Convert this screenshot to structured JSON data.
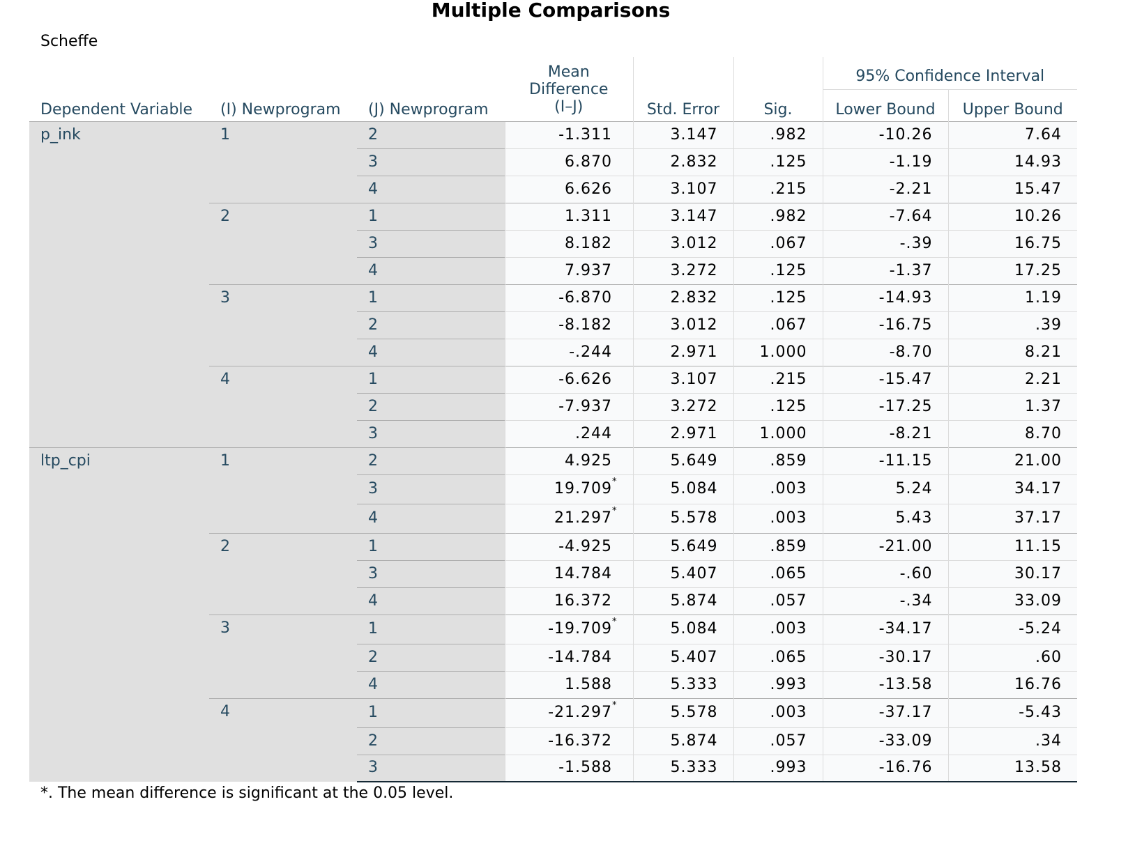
{
  "title": "Multiple Comparisons",
  "subtitle": "Scheffe",
  "headers": {
    "dependent_variable": "Dependent Variable",
    "i_group": "(I) Newprogram",
    "j_group": "(J) Newprogram",
    "mean_difference": "Mean Difference (I–J)",
    "std_error": "Std. Error",
    "sig": "Sig.",
    "ci": "95% Confidence Interval",
    "lower": "Lower Bound",
    "upper": "Upper Bound"
  },
  "rows": [
    {
      "dv": "p_ink",
      "i": "1",
      "j": "2",
      "md": "-1.311",
      "se": "3.147",
      "sig": ".982",
      "lo": "-10.26",
      "up": "7.64",
      "star": false
    },
    {
      "dv": "p_ink",
      "i": "1",
      "j": "3",
      "md": "6.870",
      "se": "2.832",
      "sig": ".125",
      "lo": "-1.19",
      "up": "14.93",
      "star": false
    },
    {
      "dv": "p_ink",
      "i": "1",
      "j": "4",
      "md": "6.626",
      "se": "3.107",
      "sig": ".215",
      "lo": "-2.21",
      "up": "15.47",
      "star": false
    },
    {
      "dv": "p_ink",
      "i": "2",
      "j": "1",
      "md": "1.311",
      "se": "3.147",
      "sig": ".982",
      "lo": "-7.64",
      "up": "10.26",
      "star": false
    },
    {
      "dv": "p_ink",
      "i": "2",
      "j": "3",
      "md": "8.182",
      "se": "3.012",
      "sig": ".067",
      "lo": "-.39",
      "up": "16.75",
      "star": false
    },
    {
      "dv": "p_ink",
      "i": "2",
      "j": "4",
      "md": "7.937",
      "se": "3.272",
      "sig": ".125",
      "lo": "-1.37",
      "up": "17.25",
      "star": false
    },
    {
      "dv": "p_ink",
      "i": "3",
      "j": "1",
      "md": "-6.870",
      "se": "2.832",
      "sig": ".125",
      "lo": "-14.93",
      "up": "1.19",
      "star": false
    },
    {
      "dv": "p_ink",
      "i": "3",
      "j": "2",
      "md": "-8.182",
      "se": "3.012",
      "sig": ".067",
      "lo": "-16.75",
      "up": ".39",
      "star": false
    },
    {
      "dv": "p_ink",
      "i": "3",
      "j": "4",
      "md": "-.244",
      "se": "2.971",
      "sig": "1.000",
      "lo": "-8.70",
      "up": "8.21",
      "star": false
    },
    {
      "dv": "p_ink",
      "i": "4",
      "j": "1",
      "md": "-6.626",
      "se": "3.107",
      "sig": ".215",
      "lo": "-15.47",
      "up": "2.21",
      "star": false
    },
    {
      "dv": "p_ink",
      "i": "4",
      "j": "2",
      "md": "-7.937",
      "se": "3.272",
      "sig": ".125",
      "lo": "-17.25",
      "up": "1.37",
      "star": false
    },
    {
      "dv": "p_ink",
      "i": "4",
      "j": "3",
      "md": ".244",
      "se": "2.971",
      "sig": "1.000",
      "lo": "-8.21",
      "up": "8.70",
      "star": false
    },
    {
      "dv": "ltp_cpi",
      "i": "1",
      "j": "2",
      "md": "4.925",
      "se": "5.649",
      "sig": ".859",
      "lo": "-11.15",
      "up": "21.00",
      "star": false
    },
    {
      "dv": "ltp_cpi",
      "i": "1",
      "j": "3",
      "md": "19.709",
      "se": "5.084",
      "sig": ".003",
      "lo": "5.24",
      "up": "34.17",
      "star": true
    },
    {
      "dv": "ltp_cpi",
      "i": "1",
      "j": "4",
      "md": "21.297",
      "se": "5.578",
      "sig": ".003",
      "lo": "5.43",
      "up": "37.17",
      "star": true
    },
    {
      "dv": "ltp_cpi",
      "i": "2",
      "j": "1",
      "md": "-4.925",
      "se": "5.649",
      "sig": ".859",
      "lo": "-21.00",
      "up": "11.15",
      "star": false
    },
    {
      "dv": "ltp_cpi",
      "i": "2",
      "j": "3",
      "md": "14.784",
      "se": "5.407",
      "sig": ".065",
      "lo": "-.60",
      "up": "30.17",
      "star": false
    },
    {
      "dv": "ltp_cpi",
      "i": "2",
      "j": "4",
      "md": "16.372",
      "se": "5.874",
      "sig": ".057",
      "lo": "-.34",
      "up": "33.09",
      "star": false
    },
    {
      "dv": "ltp_cpi",
      "i": "3",
      "j": "1",
      "md": "-19.709",
      "se": "5.084",
      "sig": ".003",
      "lo": "-34.17",
      "up": "-5.24",
      "star": true
    },
    {
      "dv": "ltp_cpi",
      "i": "3",
      "j": "2",
      "md": "-14.784",
      "se": "5.407",
      "sig": ".065",
      "lo": "-30.17",
      "up": ".60",
      "star": false
    },
    {
      "dv": "ltp_cpi",
      "i": "3",
      "j": "4",
      "md": "1.588",
      "se": "5.333",
      "sig": ".993",
      "lo": "-13.58",
      "up": "16.76",
      "star": false
    },
    {
      "dv": "ltp_cpi",
      "i": "4",
      "j": "1",
      "md": "-21.297",
      "se": "5.578",
      "sig": ".003",
      "lo": "-37.17",
      "up": "-5.43",
      "star": true
    },
    {
      "dv": "ltp_cpi",
      "i": "4",
      "j": "2",
      "md": "-16.372",
      "se": "5.874",
      "sig": ".057",
      "lo": "-33.09",
      "up": ".34",
      "star": false
    },
    {
      "dv": "ltp_cpi",
      "i": "4",
      "j": "3",
      "md": "-1.588",
      "se": "5.333",
      "sig": ".993",
      "lo": "-16.76",
      "up": "13.58",
      "star": false
    }
  ],
  "star_mark": "*",
  "footnote": "*. The mean difference is significant at the 0.05 level."
}
